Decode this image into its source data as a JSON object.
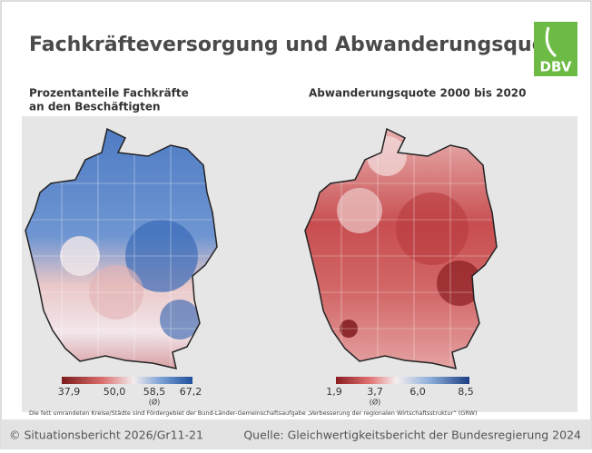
{
  "header": {
    "title": "Fachkräfteversorgung und Abwanderungsquote",
    "logo": "DBV"
  },
  "maps": [
    {
      "title_lines": [
        "Prozentanteile Fachkräfte",
        "an den Beschäftigten"
      ],
      "legend": {
        "ticks": [
          "37,9",
          "50,0",
          "58,5",
          "67,2"
        ],
        "mean_note": "(Ø)"
      }
    },
    {
      "title_lines": [
        "Abwanderungsquote 2000 bis 2020"
      ],
      "legend": {
        "ticks": [
          "1,9",
          "3,7",
          "6,0",
          "8,5"
        ],
        "mean_note": "(Ø)"
      }
    }
  ],
  "footnote": "Die fett umrandeten Kreise/Städte sind Fördergebiet der Bund-Länder-Gemeinschaftsaufgabe „Verbesserung der regionalen Wirtschaftsstruktur“ (GRW)",
  "footer": {
    "left": "© Situationsbericht 2026/Gr11-21",
    "right": "Quelle: Gleichwertigkeitsbericht der Bundesregierung 2024"
  }
}
